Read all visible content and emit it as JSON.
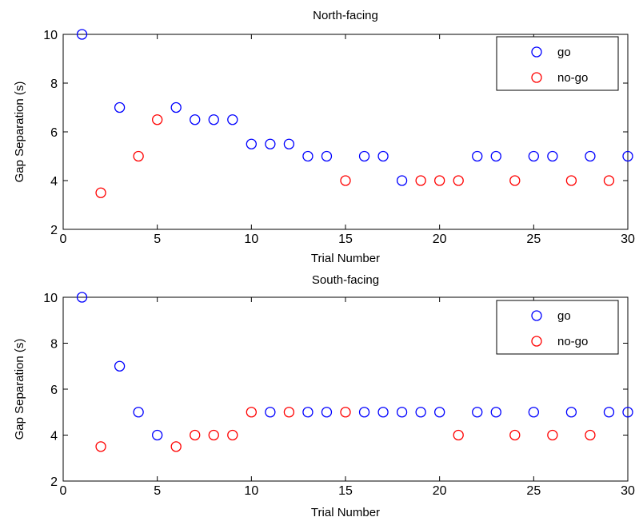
{
  "chart_data": [
    {
      "type": "scatter",
      "title": "North-facing",
      "xlabel": "Trial Number",
      "ylabel": "Gap Separation (s)",
      "xlim": [
        0,
        30
      ],
      "ylim": [
        2,
        10
      ],
      "xticks": [
        0,
        5,
        10,
        15,
        20,
        25,
        30
      ],
      "yticks": [
        2,
        4,
        6,
        8,
        10
      ],
      "grid": false,
      "legend_position": "top-right",
      "series": [
        {
          "name": "go",
          "color": "#0000ff",
          "marker": "circle",
          "x": [
            1,
            3,
            6,
            7,
            8,
            9,
            10,
            11,
            12,
            13,
            14,
            16,
            17,
            18,
            22,
            23,
            25,
            26,
            28,
            30
          ],
          "y": [
            10,
            7,
            7,
            6.5,
            6.5,
            6.5,
            5.5,
            5.5,
            5.5,
            5,
            5,
            5,
            5,
            4,
            5,
            5,
            5,
            5,
            5,
            5
          ]
        },
        {
          "name": "no-go",
          "color": "#ff0000",
          "marker": "circle",
          "x": [
            2,
            4,
            5,
            15,
            19,
            20,
            21,
            24,
            27,
            29
          ],
          "y": [
            3.5,
            5,
            6.5,
            4,
            4,
            4,
            4,
            4,
            4,
            4
          ]
        }
      ]
    },
    {
      "type": "scatter",
      "title": "South-facing",
      "xlabel": "Trial Number",
      "ylabel": "Gap Separation (s)",
      "xlim": [
        0,
        30
      ],
      "ylim": [
        2,
        10
      ],
      "xticks": [
        0,
        5,
        10,
        15,
        20,
        25,
        30
      ],
      "yticks": [
        2,
        4,
        6,
        8,
        10
      ],
      "grid": false,
      "legend_position": "top-right",
      "series": [
        {
          "name": "go",
          "color": "#0000ff",
          "marker": "circle",
          "x": [
            1,
            3,
            4,
            5,
            11,
            13,
            14,
            16,
            17,
            18,
            19,
            20,
            22,
            23,
            25,
            27,
            29,
            30
          ],
          "y": [
            10,
            7,
            5,
            4,
            5,
            5,
            5,
            5,
            5,
            5,
            5,
            5,
            5,
            5,
            5,
            5,
            5,
            5
          ]
        },
        {
          "name": "no-go",
          "color": "#ff0000",
          "marker": "circle",
          "x": [
            2,
            6,
            7,
            8,
            9,
            10,
            12,
            15,
            21,
            24,
            26,
            28
          ],
          "y": [
            3.5,
            3.5,
            4,
            4,
            4,
            5,
            5,
            5,
            4,
            4,
            4,
            4
          ]
        }
      ]
    }
  ]
}
